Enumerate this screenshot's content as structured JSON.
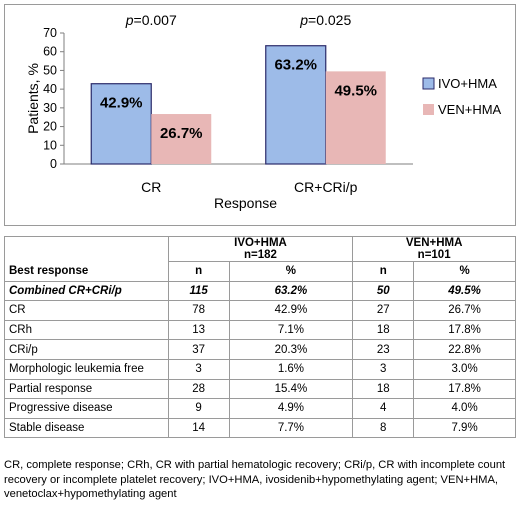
{
  "chart_data": {
    "type": "bar",
    "categories": [
      "CR",
      "CR+CRi/p"
    ],
    "series": [
      {
        "name": "IVO+HMA",
        "values": [
          42.9,
          63.2
        ],
        "labels": [
          "42.9%",
          "63.2%"
        ],
        "color": "#9dbbe8",
        "edge": "#2a2a6a"
      },
      {
        "name": "VEN+HMA",
        "values": [
          26.7,
          49.5
        ],
        "labels": [
          "26.7%",
          "49.5%"
        ],
        "color": "#e8b7b6",
        "edge": "#e8b7b6"
      }
    ],
    "xlabel": "Response",
    "ylabel": "Patients, %",
    "ylim": [
      0,
      70
    ],
    "yticks": [
      "0",
      "10",
      "20",
      "30",
      "40",
      "50",
      "60",
      "70"
    ],
    "pvalues": [
      {
        "prefix": "p",
        "value": "=0.007"
      },
      {
        "prefix": "p",
        "value": "=0.025"
      }
    ],
    "legend_position": "right",
    "grid": false
  },
  "table": {
    "best_response_header": "Best response",
    "groups": [
      {
        "name": "IVO+HMA",
        "n": "n=182"
      },
      {
        "name": "VEN+HMA",
        "n": "n=101"
      }
    ],
    "subheaders": [
      "n",
      "%",
      "n",
      "%"
    ],
    "rows": [
      {
        "label": "Combined CR+CRi/p",
        "cells": [
          "115",
          "63.2%",
          "50",
          "49.5%"
        ]
      },
      {
        "label": "CR",
        "cells": [
          "78",
          "42.9%",
          "27",
          "26.7%"
        ]
      },
      {
        "label": "CRh",
        "cells": [
          "13",
          "7.1%",
          "18",
          "17.8%"
        ]
      },
      {
        "label": "CRi/p",
        "cells": [
          "37",
          "20.3%",
          "23",
          "22.8%"
        ]
      },
      {
        "label": "Morphologic leukemia free",
        "cells": [
          "3",
          "1.6%",
          "3",
          "3.0%"
        ]
      },
      {
        "label": "Partial response",
        "cells": [
          "28",
          "15.4%",
          "18",
          "17.8%"
        ]
      },
      {
        "label": "Progressive disease",
        "cells": [
          "9",
          "4.9%",
          "4",
          "4.0%"
        ]
      },
      {
        "label": "Stable disease",
        "cells": [
          "14",
          "7.7%",
          "8",
          "7.9%"
        ]
      }
    ]
  },
  "footnote": "CR, complete response; CRh, CR with partial hematologic recovery; CRi/p, CR with incomplete count recovery or incomplete platelet recovery; IVO+HMA, ivosidenib+hypomethylating agent; VEN+HMA, venetoclax+hypomethylating agent"
}
